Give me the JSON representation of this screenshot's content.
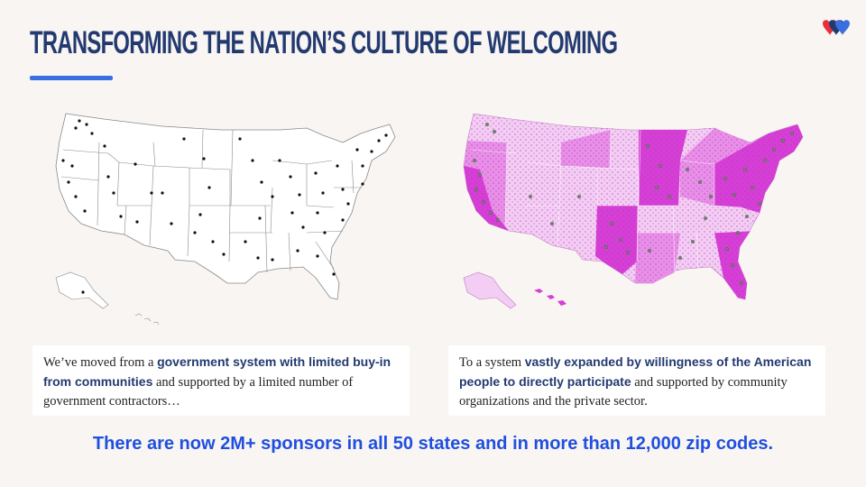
{
  "header": {
    "title": "TRANSFORMING THE NATION’S CULTURE OF WELCOMING"
  },
  "brand": {
    "logo_icon": "hearts-logo-icon",
    "colors": {
      "red": "#e8303a",
      "navy": "#233a70",
      "blue": "#3a6fe0"
    }
  },
  "maps": {
    "left": {
      "fill": "#ffffff",
      "stroke": "#8a8a8a",
      "dot": "#111111"
    },
    "right": {
      "fill_dark": "#d63fd6",
      "fill_mid": "#e88fe8",
      "fill_light": "#f3cdf3",
      "dot": "#6e8a6e"
    }
  },
  "captions": {
    "left": {
      "pre": "We’ve moved from a ",
      "bold": "government system with limited buy-in from communities",
      "post": " and supported by a limited number of government contractors…"
    },
    "right": {
      "pre": "To a system ",
      "bold": "vastly expanded by willingness of the American people to directly participate",
      "post": " and supported by community organizations and the private sector."
    }
  },
  "footer": {
    "text": "There are now 2M+ sponsors in all 50 states and in more than 12,000 zip codes."
  }
}
